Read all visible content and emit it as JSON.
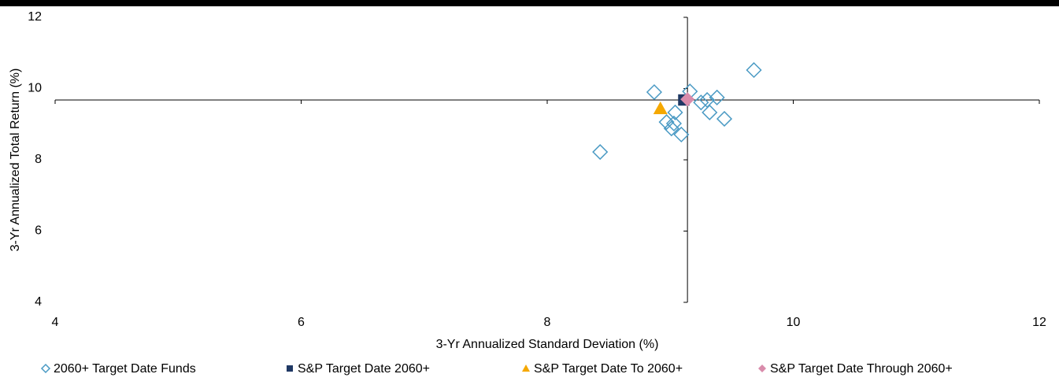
{
  "chart_data": {
    "type": "scatter",
    "x_label": "3-Yr Annualized Standard Deviation (%)",
    "y_label": "3-Yr Annualized Total Return (%)",
    "xlim": [
      4,
      12
    ],
    "ylim": [
      4,
      12
    ],
    "xticks": [
      4,
      6,
      8,
      10,
      12
    ],
    "yticks": [
      4,
      6,
      8,
      10,
      12
    ],
    "x_axis_crosses_at": 9.68,
    "y_axis_crosses_at": 9.14,
    "series": [
      {
        "name": "2060+ Target Date Funds",
        "color": "#4a9ac4",
        "marker": "hollow-diamond",
        "x": [
          9.68,
          8.87,
          9.16,
          9.25,
          9.3,
          9.38,
          9.32,
          9.44,
          9.04,
          8.97,
          9.03,
          9.01,
          9.09,
          8.43
        ],
        "values": [
          10.52,
          9.9,
          9.92,
          9.61,
          9.68,
          9.75,
          9.33,
          9.15,
          9.33,
          9.06,
          9.02,
          8.88,
          8.71,
          8.22
        ]
      },
      {
        "name": "S&P Target Date 2060+",
        "color": "#1f3864",
        "marker": "square",
        "x": [
          9.11
        ],
        "values": [
          9.68
        ]
      },
      {
        "name": "S&P Target Date To 2060+",
        "color": "#f5a800",
        "marker": "triangle",
        "x": [
          8.92
        ],
        "values": [
          9.44
        ]
      },
      {
        "name": "S&P Target Date Through 2060+",
        "color": "#d98cab",
        "marker": "diamond",
        "x": [
          9.14
        ],
        "values": [
          9.7
        ]
      }
    ]
  }
}
